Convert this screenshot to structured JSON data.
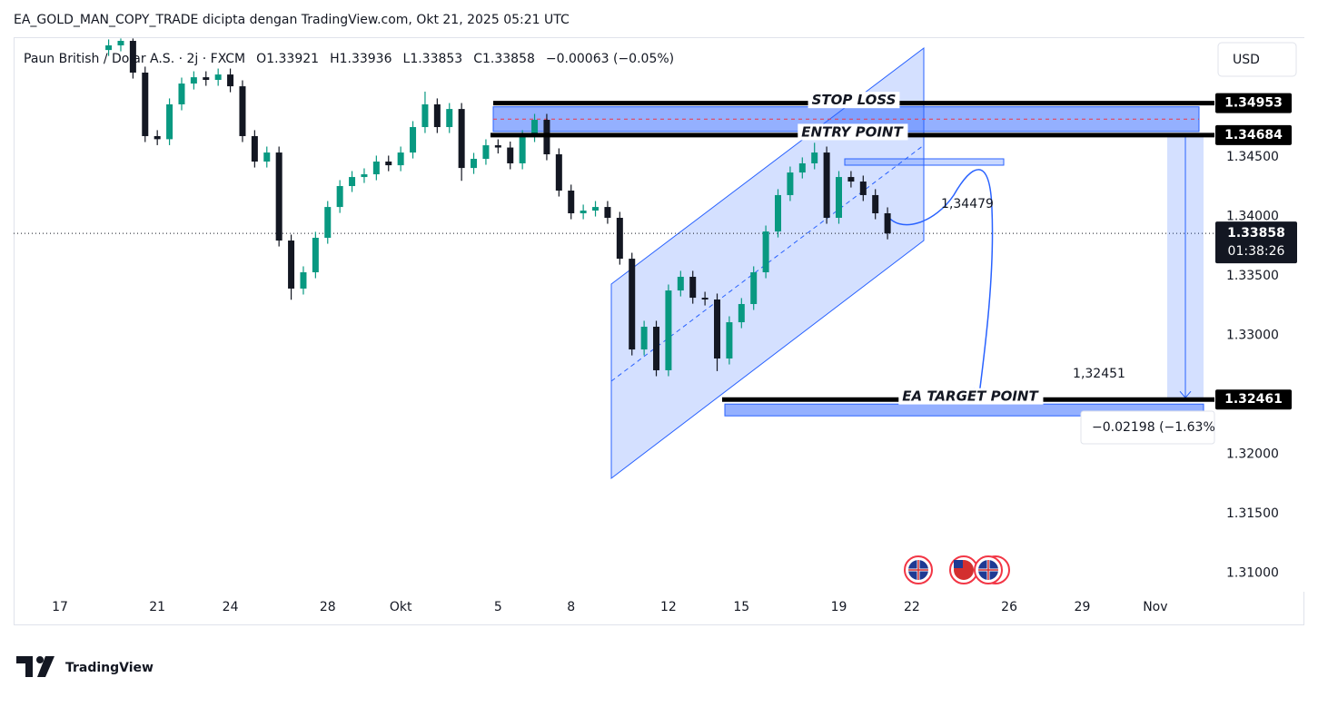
{
  "header": {
    "title": "EA_GOLD_MAN_COPY_TRADE dicipta dengan TradingView.com, Okt 21, 2025 05:21 UTC"
  },
  "logo": "TradingView",
  "chart_data": {
    "type": "candlestick",
    "legend": {
      "symbol": "Paun British / Dolar A.S. · 2j · FXCM",
      "ohlc": [
        {
          "key": "O",
          "value": 1.33921
        },
        {
          "key": "H",
          "value": 1.33936
        },
        {
          "key": "L",
          "value": 1.33853
        },
        {
          "key": "C",
          "value": 1.33858
        }
      ],
      "change": "−0.00063 (−0.05%)"
    },
    "currency": "USD",
    "up_color": "#089981",
    "down_color": "#131722",
    "x": [
      "2025-09-19T00:00",
      "2025-09-19T12:00",
      "2025-09-20T00:00",
      "2025-09-20T12:00",
      "2025-09-21T00:00",
      "2025-09-21T12:00",
      "2025-09-22T00:00",
      "2025-09-22T12:00",
      "2025-09-23T00:00",
      "2025-09-23T12:00",
      "2025-09-24T00:00",
      "2025-09-24T12:00",
      "2025-09-25T00:00",
      "2025-09-25T12:00",
      "2025-09-26T00:00",
      "2025-09-26T12:00",
      "2025-09-27T00:00",
      "2025-09-27T12:00",
      "2025-09-28T00:00",
      "2025-09-28T12:00",
      "2025-09-29T00:00",
      "2025-09-29T12:00",
      "2025-09-30T00:00",
      "2025-09-30T12:00",
      "2025-10-01T00:00",
      "2025-10-01T12:00",
      "2025-10-02T00:00",
      "2025-10-02T12:00",
      "2025-10-03T00:00",
      "2025-10-03T12:00",
      "2025-10-04T00:00",
      "2025-10-04T12:00",
      "2025-10-05T00:00",
      "2025-10-05T12:00",
      "2025-10-06T00:00",
      "2025-10-06T12:00",
      "2025-10-07T00:00",
      "2025-10-07T12:00",
      "2025-10-08T00:00",
      "2025-10-08T12:00",
      "2025-10-09T00:00",
      "2025-10-09T12:00",
      "2025-10-10T00:00",
      "2025-10-10T12:00",
      "2025-10-11T00:00",
      "2025-10-11T12:00",
      "2025-10-12T00:00",
      "2025-10-12T12:00",
      "2025-10-13T00:00",
      "2025-10-13T12:00",
      "2025-10-14T00:00",
      "2025-10-14T12:00",
      "2025-10-15T00:00",
      "2025-10-15T12:00",
      "2025-10-16T00:00",
      "2025-10-16T12:00",
      "2025-10-17T00:00",
      "2025-10-17T12:00",
      "2025-10-18T00:00",
      "2025-10-18T12:00",
      "2025-10-19T00:00",
      "2025-10-19T12:00",
      "2025-10-20T00:00",
      "2025-10-20T12:00",
      "2025-10-21T00:00"
    ],
    "open": [
      1.354,
      1.35439,
      1.35477,
      1.3521,
      1.34676,
      1.3465,
      1.34943,
      1.35118,
      1.35171,
      1.35149,
      1.35194,
      1.35095,
      1.34676,
      1.34462,
      1.34538,
      1.33798,
      1.33394,
      1.33531,
      1.33821,
      1.3408,
      1.34256,
      1.34332,
      1.34355,
      1.34462,
      1.34431,
      1.34538,
      1.34752,
      1.34943,
      1.34752,
      1.34904,
      1.34408,
      1.34485,
      1.34599,
      1.3458,
      1.34447,
      1.34676,
      1.34813,
      1.34523,
      1.34218,
      1.34027,
      1.3405,
      1.3408,
      1.33989,
      1.33645,
      1.32882,
      1.33073,
      1.32707,
      1.33378,
      1.33493,
      1.33317,
      1.33302,
      1.32806,
      1.33111,
      1.33264,
      1.33531,
      1.33874,
      1.3418,
      1.3437,
      1.34447,
      1.34538,
      1.33989,
      1.34332,
      1.34294,
      1.3418,
      1.34027
    ],
    "high": [
      1.35489,
      1.35497,
      1.35497,
      1.3526,
      1.34726,
      1.34993,
      1.35168,
      1.35221,
      1.35221,
      1.35244,
      1.35244,
      1.35145,
      1.34726,
      1.34588,
      1.34588,
      1.33848,
      1.33581,
      1.33871,
      1.3413,
      1.34306,
      1.34382,
      1.34405,
      1.34512,
      1.34512,
      1.34588,
      1.34802,
      1.3505,
      1.34993,
      1.34954,
      1.34954,
      1.34535,
      1.34649,
      1.34649,
      1.3463,
      1.34726,
      1.34863,
      1.34863,
      1.34573,
      1.34268,
      1.341,
      1.3413,
      1.3413,
      1.34039,
      1.33695,
      1.33123,
      1.33123,
      1.33428,
      1.33543,
      1.33543,
      1.33367,
      1.33352,
      1.33161,
      1.33314,
      1.33581,
      1.33924,
      1.3423,
      1.3442,
      1.34497,
      1.3462,
      1.34588,
      1.34382,
      1.34382,
      1.34344,
      1.3423,
      1.34077
    ],
    "low": [
      1.3535,
      1.35389,
      1.3516,
      1.34626,
      1.346,
      1.346,
      1.34893,
      1.35068,
      1.35099,
      1.35099,
      1.35045,
      1.34626,
      1.34412,
      1.34412,
      1.33748,
      1.333,
      1.33344,
      1.33481,
      1.33771,
      1.3403,
      1.34206,
      1.34282,
      1.34305,
      1.34381,
      1.34381,
      1.34488,
      1.34702,
      1.34702,
      1.34702,
      1.343,
      1.34358,
      1.34435,
      1.3453,
      1.34397,
      1.34397,
      1.34626,
      1.34473,
      1.34168,
      1.33977,
      1.33977,
      1.34,
      1.33939,
      1.33595,
      1.32832,
      1.32832,
      1.32657,
      1.32657,
      1.33328,
      1.33267,
      1.33252,
      1.327,
      1.32756,
      1.33061,
      1.33214,
      1.33481,
      1.33824,
      1.3413,
      1.3432,
      1.34397,
      1.33939,
      1.33939,
      1.34244,
      1.3413,
      1.33977,
      1.33808
    ],
    "close": [
      1.35439,
      1.35477,
      1.3521,
      1.34676,
      1.3465,
      1.34943,
      1.35118,
      1.35171,
      1.35149,
      1.35194,
      1.35095,
      1.34676,
      1.34462,
      1.34538,
      1.33798,
      1.33394,
      1.33531,
      1.33821,
      1.3408,
      1.34256,
      1.34332,
      1.34355,
      1.34462,
      1.34431,
      1.34538,
      1.34752,
      1.34943,
      1.34752,
      1.34904,
      1.34408,
      1.34485,
      1.34599,
      1.3458,
      1.34447,
      1.34676,
      1.34813,
      1.34523,
      1.34218,
      1.34027,
      1.3405,
      1.3408,
      1.33989,
      1.33645,
      1.32882,
      1.33073,
      1.32707,
      1.33378,
      1.33493,
      1.33317,
      1.33302,
      1.32806,
      1.33111,
      1.33264,
      1.33531,
      1.33874,
      1.3418,
      1.3437,
      1.34447,
      1.34538,
      1.33989,
      1.34332,
      1.34294,
      1.3418,
      1.34027,
      1.33858
    ],
    "xlim": [
      "2025-09-15T02:20",
      "2025-11-03T10:20"
    ],
    "xticks": [
      {
        "value": "2025-09-17T00:00",
        "label": "17"
      },
      {
        "value": "2025-09-21T00:00",
        "label": "21"
      },
      {
        "value": "2025-09-24T00:00",
        "label": "24"
      },
      {
        "value": "2025-09-28T00:00",
        "label": "28"
      },
      {
        "value": "2025-10-01T00:00",
        "label": "Okt"
      },
      {
        "value": "2025-10-05T00:00",
        "label": "5"
      },
      {
        "value": "2025-10-08T00:00",
        "label": "8"
      },
      {
        "value": "2025-10-12T00:00",
        "label": "12"
      },
      {
        "value": "2025-10-15T00:00",
        "label": "15"
      },
      {
        "value": "2025-10-19T00:00",
        "label": "19"
      },
      {
        "value": "2025-10-22T00:00",
        "label": "22"
      },
      {
        "value": "2025-10-26T00:00",
        "label": "26"
      },
      {
        "value": "2025-10-29T00:00",
        "label": "29"
      },
      {
        "value": "2025-11-01T00:00",
        "label": "Nov"
      }
    ],
    "ylim": [
      1.3057,
      1.355
    ],
    "yticks": [
      {
        "value": 1.345,
        "label": "1.34500"
      },
      {
        "value": 1.34,
        "label": "1.34000"
      },
      {
        "value": 1.335,
        "label": "1.33500"
      },
      {
        "value": 1.33,
        "label": "1.33000"
      },
      {
        "value": 1.32,
        "label": "1.32000"
      },
      {
        "value": 1.315,
        "label": "1.31500"
      },
      {
        "value": 1.31,
        "label": "1.31000"
      }
    ],
    "levels": [
      {
        "name": "STOP LOSS",
        "value": 1.34953
      },
      {
        "name": "ENTRY POINT",
        "value": 1.34684
      },
      {
        "name": "EA TARGET POINT",
        "value": 1.32461
      }
    ],
    "current_price": 1.33858,
    "countdown": "01:38:26",
    "annotations": [
      "1,34479",
      "1,32451"
    ],
    "measure": "−0.02198 (−1.63%)"
  }
}
